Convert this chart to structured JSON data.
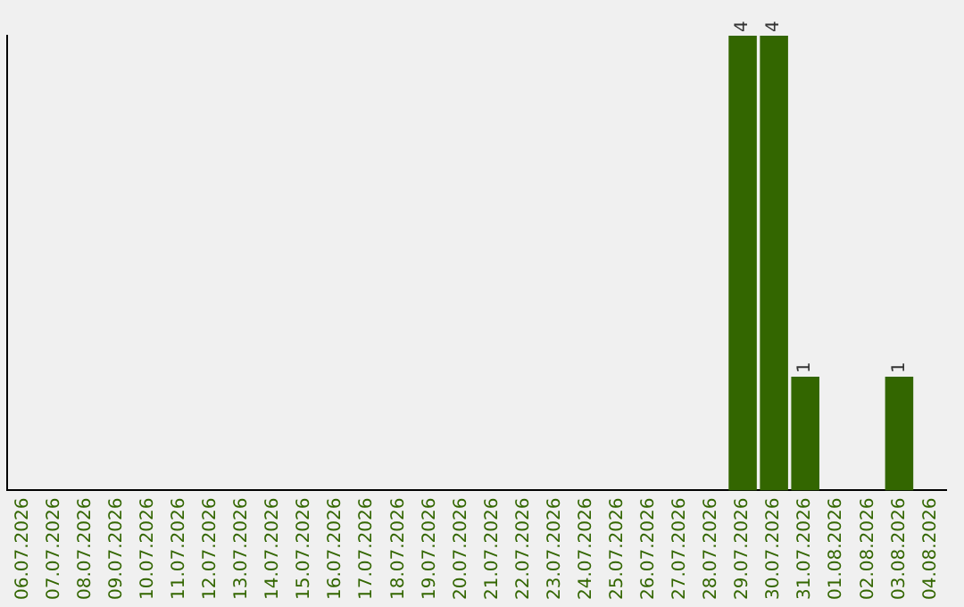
{
  "chart_data": {
    "type": "bar",
    "categories": [
      "06.07.2026",
      "07.07.2026",
      "08.07.2026",
      "09.07.2026",
      "10.07.2026",
      "11.07.2026",
      "12.07.2026",
      "13.07.2026",
      "14.07.2026",
      "15.07.2026",
      "16.07.2026",
      "17.07.2026",
      "18.07.2026",
      "19.07.2026",
      "20.07.2026",
      "21.07.2026",
      "22.07.2026",
      "23.07.2026",
      "24.07.2026",
      "25.07.2026",
      "26.07.2026",
      "27.07.2026",
      "28.07.2026",
      "29.07.2026",
      "30.07.2026",
      "31.07.2026",
      "01.08.2026",
      "02.08.2026",
      "03.08.2026",
      "04.08.2026"
    ],
    "values": [
      null,
      null,
      null,
      null,
      null,
      null,
      null,
      null,
      null,
      null,
      null,
      null,
      null,
      null,
      null,
      null,
      null,
      null,
      null,
      null,
      null,
      null,
      null,
      4,
      4,
      1,
      null,
      null,
      1,
      null
    ],
    "data_labels": true,
    "color": "#336600",
    "tick_labels": "x",
    "grid": false,
    "legend": false
  }
}
